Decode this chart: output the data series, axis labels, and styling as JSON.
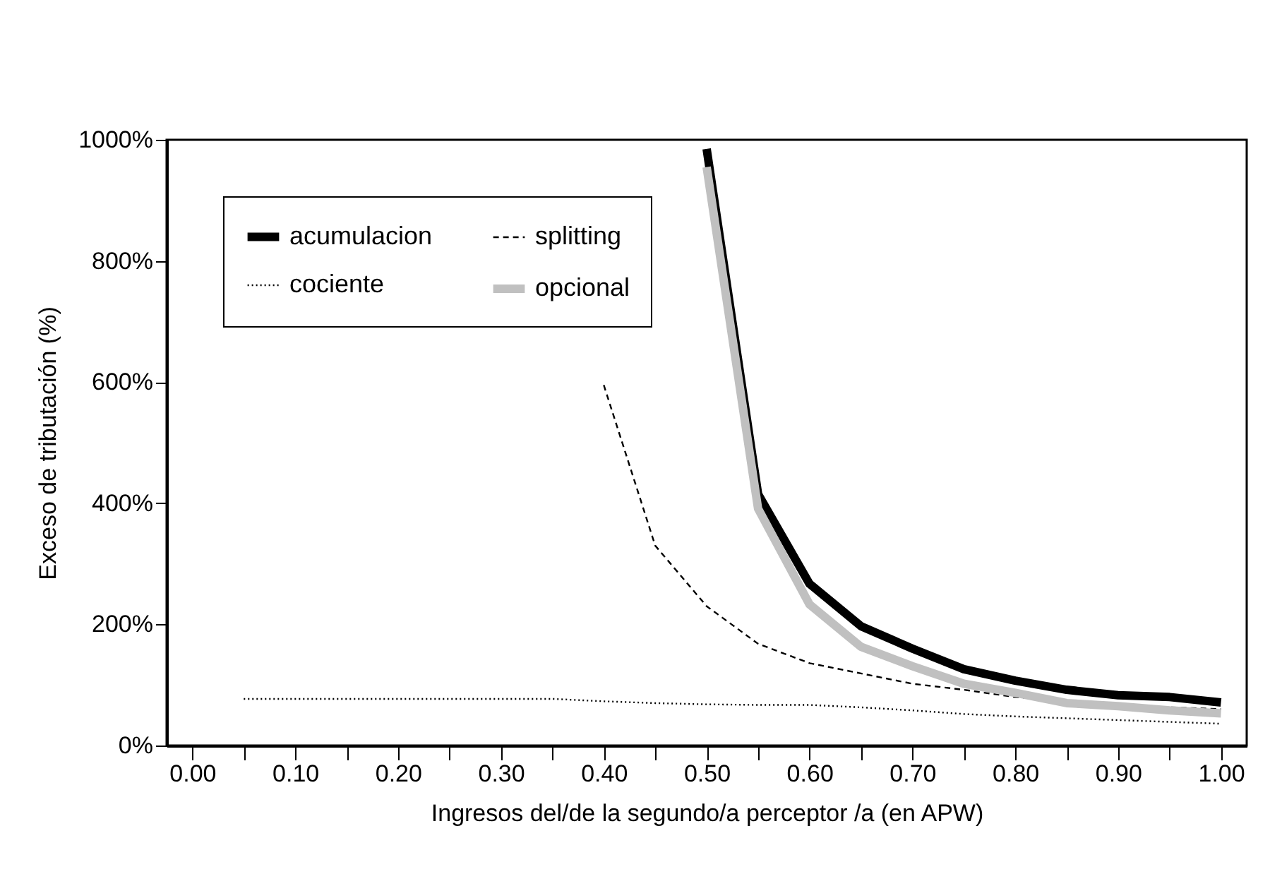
{
  "chart_data": {
    "type": "line",
    "xlabel": "Ingresos del/de la segundo/a perceptor /a (en APW)",
    "ylabel": "Exceso de tributación (%)",
    "x": [
      0.05,
      0.1,
      0.15,
      0.2,
      0.25,
      0.3,
      0.35,
      0.4,
      0.45,
      0.5,
      0.55,
      0.6,
      0.65,
      0.7,
      0.75,
      0.8,
      0.85,
      0.9,
      0.95,
      1.0
    ],
    "series": [
      {
        "name": "acumulacion",
        "color": "#000000",
        "line_style": "solid",
        "values": [
          null,
          null,
          null,
          null,
          null,
          null,
          null,
          null,
          null,
          985,
          415,
          267,
          197,
          160,
          126,
          107,
          92,
          83,
          80,
          71
        ]
      },
      {
        "name": "cociente",
        "color": "#000000",
        "line_style": "dotted",
        "values": [
          77,
          77,
          77,
          77,
          77,
          77,
          77,
          73,
          70,
          68,
          67,
          67,
          63,
          58,
          52,
          48,
          45,
          42,
          39,
          36
        ]
      },
      {
        "name": "splitting",
        "color": "#000000",
        "line_style": "dashed",
        "values": [
          null,
          null,
          null,
          null,
          null,
          null,
          null,
          595,
          330,
          230,
          168,
          136,
          119,
          102,
          92,
          80,
          73,
          68,
          63,
          60
        ]
      },
      {
        "name": "opcional",
        "color": "#c0c0c0",
        "line_style": "solid",
        "values": [
          null,
          null,
          null,
          null,
          null,
          null,
          null,
          null,
          null,
          955,
          391,
          233,
          163,
          131,
          102,
          87,
          70,
          65,
          58,
          53
        ]
      }
    ],
    "xlim": [
      -0.025,
      1.025
    ],
    "xticks": [
      {
        "value": 0,
        "label": "0.00"
      },
      {
        "value": 0.05,
        "label": null
      },
      {
        "value": 0.1,
        "label": "0.10"
      },
      {
        "value": 0.15,
        "label": null
      },
      {
        "value": 0.2,
        "label": "0.20"
      },
      {
        "value": 0.25,
        "label": null
      },
      {
        "value": 0.3,
        "label": "0.30"
      },
      {
        "value": 0.35,
        "label": null
      },
      {
        "value": 0.4,
        "label": "0.40"
      },
      {
        "value": 0.45,
        "label": null
      },
      {
        "value": 0.5,
        "label": "0.50"
      },
      {
        "value": 0.55,
        "label": null
      },
      {
        "value": 0.6,
        "label": "0.60"
      },
      {
        "value": 0.65,
        "label": null
      },
      {
        "value": 0.7,
        "label": "0.70"
      },
      {
        "value": 0.75,
        "label": null
      },
      {
        "value": 0.8,
        "label": "0.80"
      },
      {
        "value": 0.85,
        "label": null
      },
      {
        "value": 0.9,
        "label": "0.90"
      },
      {
        "value": 0.95,
        "label": null
      },
      {
        "value": 1.0,
        "label": "1.00"
      }
    ],
    "ylim": [
      0,
      1000
    ],
    "yticks": [
      {
        "value": 0,
        "label": "0%"
      },
      {
        "value": 200,
        "label": "200%"
      },
      {
        "value": 400,
        "label": "400%"
      },
      {
        "value": 600,
        "label": "600%"
      },
      {
        "value": 800,
        "label": "800%"
      },
      {
        "value": 1000,
        "label": "1000%"
      }
    ],
    "legend": "top left",
    "grid": false,
    "marker": "none"
  }
}
